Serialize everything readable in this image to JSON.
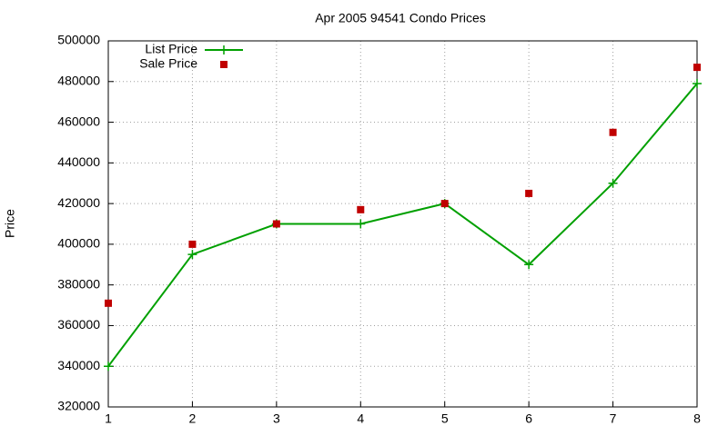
{
  "chart_data": {
    "type": "line",
    "title": "Apr 2005 94541 Condo Prices",
    "y_label": "Price",
    "x": [
      1,
      2,
      3,
      4,
      5,
      6,
      7,
      8
    ],
    "series": [
      {
        "name": "List Price",
        "color": "#00a000",
        "style": "linespoints",
        "values": [
          340000,
          395000,
          410000,
          410000,
          420000,
          390000,
          430000,
          479000
        ]
      },
      {
        "name": "Sale Price",
        "color": "#c00000",
        "style": "points",
        "values": [
          371000,
          400000,
          410000,
          417000,
          420000,
          425000,
          455000,
          487000
        ]
      }
    ],
    "xlim": [
      1,
      8
    ],
    "xticks": [
      1,
      2,
      3,
      4,
      5,
      6,
      7,
      8
    ],
    "ylim": [
      320000,
      500000
    ],
    "yticks": [
      320000,
      340000,
      360000,
      380000,
      400000,
      420000,
      440000,
      460000,
      480000,
      500000
    ],
    "grid": true,
    "legend": "top-left"
  }
}
